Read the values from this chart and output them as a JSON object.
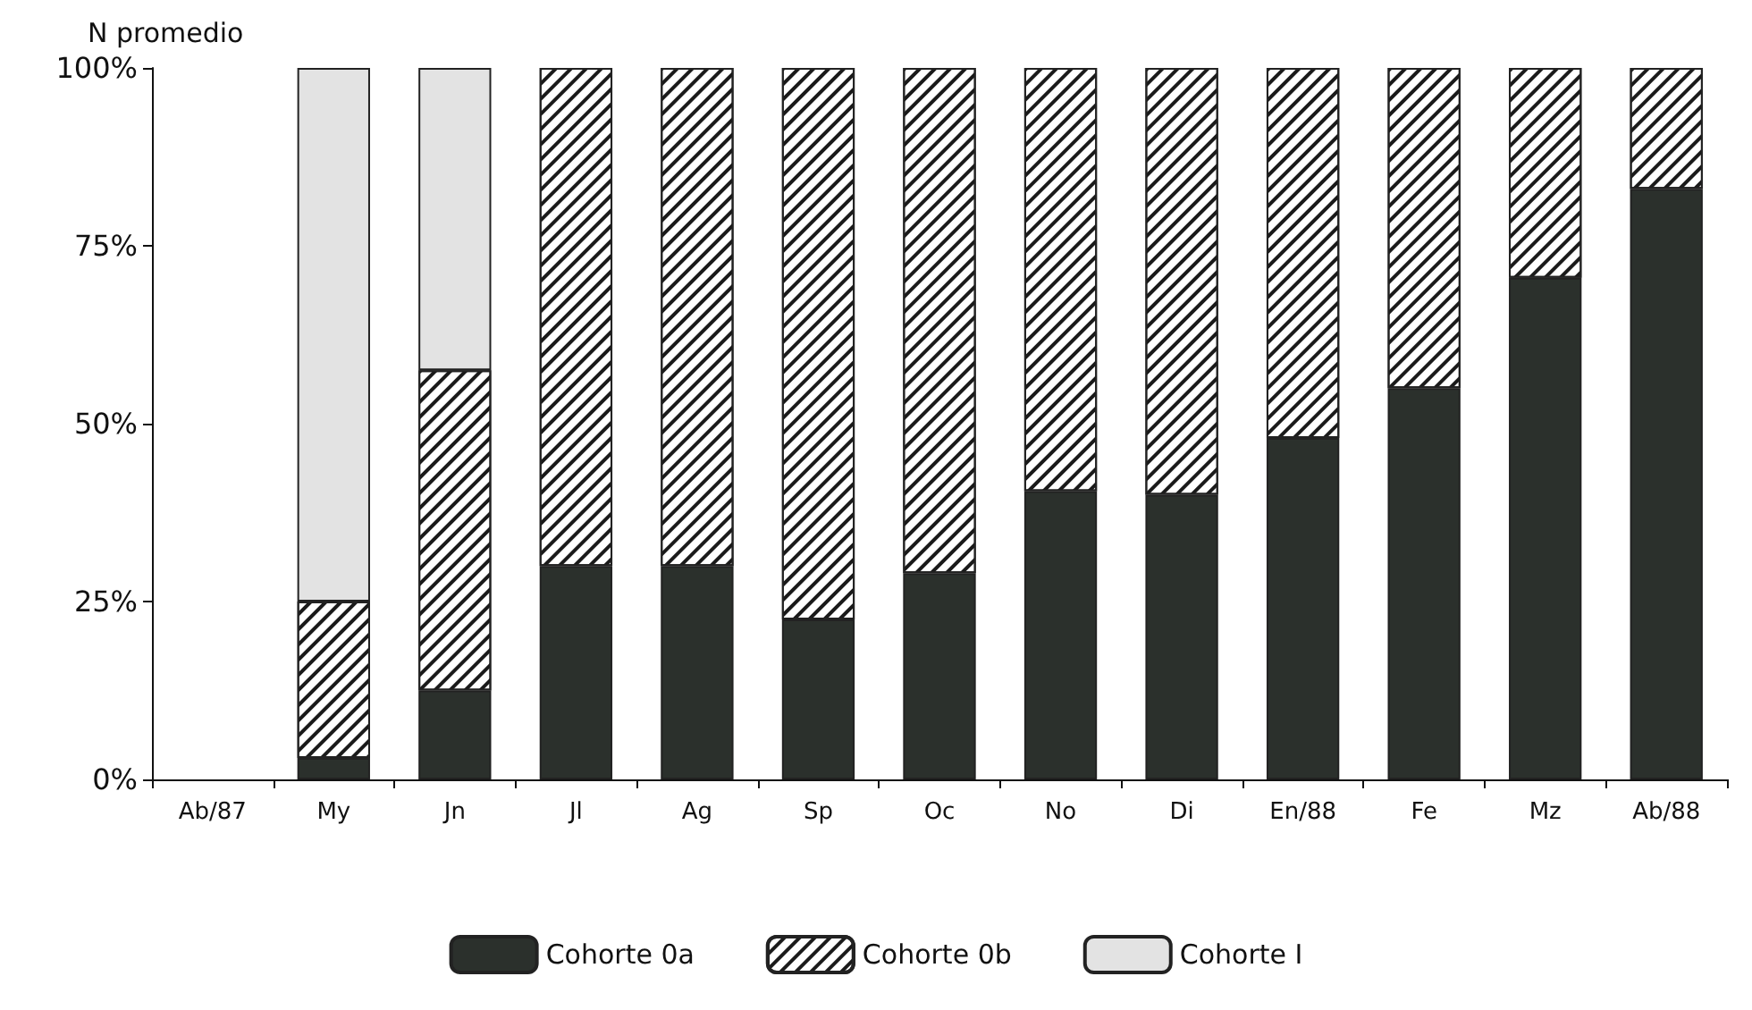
{
  "chart_data": {
    "type": "bar",
    "stacked": true,
    "ylabel": "N promedio",
    "categories": [
      "Ab/87",
      "My",
      "Jn",
      "Jl",
      "Ag",
      "Sp",
      "Oc",
      "No",
      "Di",
      "En/88",
      "Fe",
      "Mz",
      "Ab/88"
    ],
    "series": [
      {
        "name": "Cohorte 0a",
        "color": "#2b302c",
        "values": [
          null,
          3,
          12.5,
          30,
          30,
          22.5,
          29,
          40.5,
          40,
          48,
          55,
          70.5,
          83
        ]
      },
      {
        "name": "Cohorte 0b",
        "color": "#ffffff",
        "values": [
          null,
          22,
          45,
          70,
          70,
          77.5,
          71,
          59.5,
          60,
          52,
          45,
          29.5,
          17
        ]
      },
      {
        "name": "Cohorte I",
        "color": "#e3e3e3",
        "values": [
          null,
          75,
          42.5,
          null,
          null,
          null,
          null,
          null,
          null,
          null,
          null,
          null,
          null
        ]
      }
    ],
    "ylim": [
      0,
      100
    ],
    "yticks": [
      {
        "value": 0,
        "label": "0%"
      },
      {
        "value": 25,
        "label": "25%"
      },
      {
        "value": 50,
        "label": "50%"
      },
      {
        "value": 75,
        "label": "75%"
      },
      {
        "value": 100,
        "label": "100%"
      }
    ],
    "grid": false,
    "legend": "bottom"
  }
}
